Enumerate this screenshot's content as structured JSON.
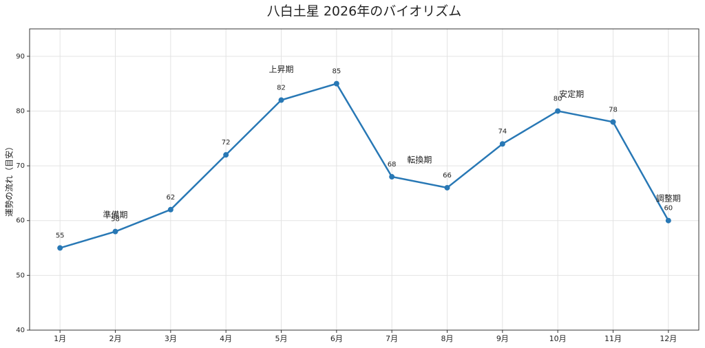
{
  "chart_data": {
    "type": "line",
    "title": "八白土星 2026年のバイオリズム",
    "y_label": "運勢の流れ（目安）",
    "categories": [
      "1月",
      "2月",
      "3月",
      "4月",
      "5月",
      "6月",
      "7月",
      "8月",
      "9月",
      "10月",
      "11月",
      "12月"
    ],
    "values": [
      55,
      58,
      62,
      72,
      82,
      85,
      68,
      66,
      74,
      80,
      78,
      60
    ],
    "color": "#2878b5",
    "ylim": [
      40,
      95
    ],
    "yticks": [
      40,
      50,
      60,
      70,
      80,
      90
    ],
    "grid": true,
    "annotations": [
      {
        "text": "準備期",
        "x": 1,
        "y": 61
      },
      {
        "text": "上昇期",
        "x": 4,
        "y": 87.5
      },
      {
        "text": "転換期",
        "x": 6.5,
        "y": 71
      },
      {
        "text": "安定期",
        "x": 9.25,
        "y": 83
      },
      {
        "text": "調整期",
        "x": 11,
        "y": 64
      }
    ]
  }
}
